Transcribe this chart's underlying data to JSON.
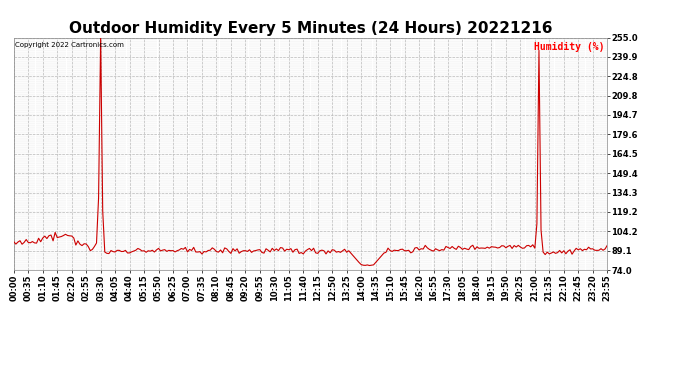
{
  "title": "Outdoor Humidity Every 5 Minutes (24 Hours) 20221216",
  "ylabel": "Humidity (%)",
  "ylabel_color": "#ff0000",
  "copyright_text": "Copyright 2022 Cartronics.com",
  "copyright_color": "#000000",
  "line_color": "#cc0000",
  "background_color": "#ffffff",
  "grid_color": "#bbbbbb",
  "ylim": [
    74.0,
    255.0
  ],
  "yticks": [
    74.0,
    89.1,
    104.2,
    119.2,
    134.3,
    149.4,
    164.5,
    179.6,
    194.7,
    209.8,
    224.8,
    239.9,
    255.0
  ],
  "ytick_labels": [
    "74.0",
    "89.1",
    "104.2",
    "119.2",
    "134.3",
    "149.4",
    "164.5",
    "179.6",
    "194.7",
    "209.8",
    "224.8",
    "239.9",
    "255.0"
  ],
  "title_fontsize": 11,
  "tick_fontsize": 6,
  "figsize": [
    6.9,
    3.75
  ],
  "dpi": 100,
  "xtick_every": 7,
  "n_points": 288
}
